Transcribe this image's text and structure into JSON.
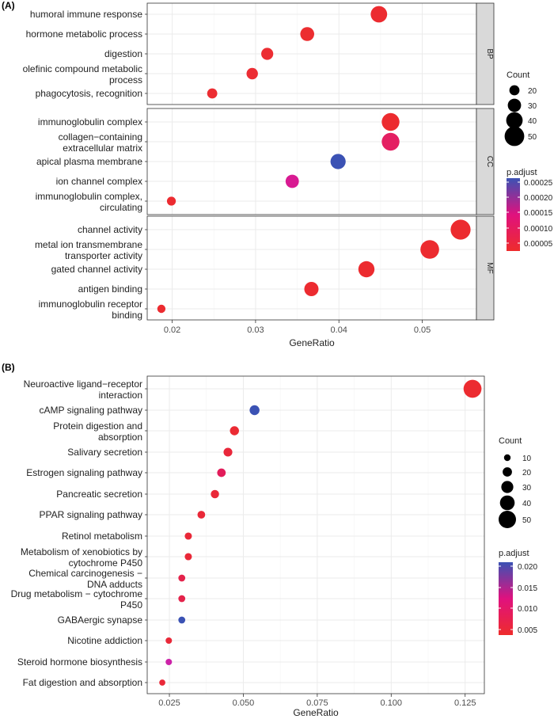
{
  "figure": {
    "panel_a_tag": "(A)",
    "panel_b_tag": "(B)"
  },
  "chart_data": [
    {
      "type": "scatter",
      "panel": "(A)",
      "xlabel": "GeneRatio",
      "xlim": [
        0.017,
        0.0565
      ],
      "xticks": [
        0.02,
        0.03,
        0.04,
        0.05
      ],
      "xtick_labels": [
        "0.02",
        "0.03",
        "0.04",
        "0.05"
      ],
      "grid": true,
      "facets": [
        {
          "label": "BP",
          "terms": [
            {
              "lines": [
                "humoral immune response"
              ],
              "x": 0.0448,
              "count": 40,
              "p_adjust": 2e-06,
              "color": "#ec2b30"
            },
            {
              "lines": [
                "hormone metabolic process"
              ],
              "x": 0.0362,
              "count": 32,
              "p_adjust": 3e-06,
              "color": "#ec2d30"
            },
            {
              "lines": [
                "digestion"
              ],
              "x": 0.0314,
              "count": 26,
              "p_adjust": 3e-06,
              "color": "#ec2d32"
            },
            {
              "lines": [
                "olefinic compound metabolic",
                "process"
              ],
              "x": 0.0296,
              "count": 24,
              "p_adjust": 4e-06,
              "color": "#ec2d34"
            },
            {
              "lines": [
                "phagocytosis, recognition"
              ],
              "x": 0.0248,
              "count": 20,
              "p_adjust": 3e-06,
              "color": "#ec2d32"
            }
          ]
        },
        {
          "label": "CC",
          "terms": [
            {
              "lines": [
                "immunoglobulin complex"
              ],
              "x": 0.0462,
              "count": 44,
              "p_adjust": 2e-06,
              "color": "#ec2b2f"
            },
            {
              "lines": [
                "collagen−containing",
                "extracellular matrix"
              ],
              "x": 0.0462,
              "count": 44,
              "p_adjust": 5e-05,
              "color": "#e41f62"
            },
            {
              "lines": [
                "apical plasma membrane"
              ],
              "x": 0.0399,
              "count": 36,
              "p_adjust": 0.00026,
              "color": "#3b52b4"
            },
            {
              "lines": [
                "ion channel complex"
              ],
              "x": 0.0344,
              "count": 30,
              "p_adjust": 0.00011,
              "color": "#d81a92"
            },
            {
              "lines": [
                "immunoglobulin complex,",
                "circulating"
              ],
              "x": 0.0199,
              "count": 16,
              "p_adjust": 2e-06,
              "color": "#ec2b30"
            }
          ]
        },
        {
          "label": "MF",
          "terms": [
            {
              "lines": [
                "channel activity"
              ],
              "x": 0.0546,
              "count": 51,
              "p_adjust": 2e-06,
              "color": "#ec2b2f"
            },
            {
              "lines": [
                "metal ion transmembrane",
                "transporter activity"
              ],
              "x": 0.0509,
              "count": 47,
              "p_adjust": 2e-06,
              "color": "#ec2b2f"
            },
            {
              "lines": [
                "gated channel activity"
              ],
              "x": 0.0433,
              "count": 39,
              "p_adjust": 2e-06,
              "color": "#ec2b2f"
            },
            {
              "lines": [
                "antigen binding"
              ],
              "x": 0.0367,
              "count": 33,
              "p_adjust": 2e-06,
              "color": "#ec2b30"
            },
            {
              "lines": [
                "immunoglobulin receptor",
                "binding"
              ],
              "x": 0.0187,
              "count": 14,
              "p_adjust": 2e-06,
              "color": "#ec2b30"
            }
          ]
        }
      ],
      "legend_size": {
        "title": "Count",
        "values": [
          20,
          30,
          40,
          50
        ],
        "labels": [
          "20",
          "30",
          "40",
          "50"
        ]
      },
      "legend_color": {
        "title": "p.adjust",
        "ticks": [
          "0.00025",
          "0.00020",
          "0.00015",
          "0.00010",
          "0.00005"
        ],
        "low_color": "#ee2c2c",
        "mid_color": "#e0117e",
        "high_color": "#3b52b4"
      }
    },
    {
      "type": "scatter",
      "panel": "(B)",
      "xlabel": "GeneRatio",
      "xlim": [
        0.0175,
        0.1315
      ],
      "xticks": [
        0.025,
        0.05,
        0.075,
        0.1,
        0.125
      ],
      "xtick_labels": [
        "0.025",
        "0.050",
        "0.075",
        "0.100",
        "0.125"
      ],
      "grid": true,
      "terms": [
        {
          "lines": [
            "Neuroactive ligand−receptor",
            "interaction"
          ],
          "x": 0.1275,
          "count": 52,
          "p_adjust": 0.0004,
          "color": "#ec2b30"
        },
        {
          "lines": [
            "cAMP signaling pathway"
          ],
          "x": 0.0538,
          "count": 22,
          "p_adjust": 0.021,
          "color": "#3b52b4"
        },
        {
          "lines": [
            "Protein digestion and",
            "absorption"
          ],
          "x": 0.047,
          "count": 19,
          "p_adjust": 0.001,
          "color": "#eb2a33"
        },
        {
          "lines": [
            "Salivary secretion"
          ],
          "x": 0.0448,
          "count": 18,
          "p_adjust": 0.002,
          "color": "#e9273a"
        },
        {
          "lines": [
            "Estrogen signaling pathway"
          ],
          "x": 0.0426,
          "count": 17,
          "p_adjust": 0.006,
          "color": "#e21c5a"
        },
        {
          "lines": [
            "Pancreatic secretion"
          ],
          "x": 0.0404,
          "count": 16,
          "p_adjust": 0.002,
          "color": "#e92838"
        },
        {
          "lines": [
            "PPAR signaling pathway"
          ],
          "x": 0.0358,
          "count": 14,
          "p_adjust": 0.002,
          "color": "#e92838"
        },
        {
          "lines": [
            "Retinol metabolism"
          ],
          "x": 0.0314,
          "count": 12,
          "p_adjust": 0.002,
          "color": "#e92838"
        },
        {
          "lines": [
            "Metabolism of xenobiotics by",
            "cytochrome P450"
          ],
          "x": 0.0314,
          "count": 12,
          "p_adjust": 0.002,
          "color": "#e92838"
        },
        {
          "lines": [
            "Chemical carcinogenesis −",
            "DNA adducts"
          ],
          "x": 0.0292,
          "count": 11,
          "p_adjust": 0.004,
          "color": "#e4234b"
        },
        {
          "lines": [
            "Drug metabolism − cytochrome",
            "P450"
          ],
          "x": 0.0292,
          "count": 11,
          "p_adjust": 0.004,
          "color": "#e4234b"
        },
        {
          "lines": [
            "GABAergic synapse"
          ],
          "x": 0.0292,
          "count": 11,
          "p_adjust": 0.0205,
          "color": "#3b52b4"
        },
        {
          "lines": [
            "Nicotine addiction"
          ],
          "x": 0.0248,
          "count": 9,
          "p_adjust": 0.002,
          "color": "#e92838"
        },
        {
          "lines": [
            "Steroid hormone biosynthesis"
          ],
          "x": 0.0248,
          "count": 9,
          "p_adjust": 0.011,
          "color": "#cc22a8"
        },
        {
          "lines": [
            "Fat digestion and absorption"
          ],
          "x": 0.0226,
          "count": 8,
          "p_adjust": 0.002,
          "color": "#e92838"
        }
      ],
      "legend_size": {
        "title": "Count",
        "values": [
          10,
          20,
          30,
          40,
          50
        ],
        "labels": [
          "10",
          "20",
          "30",
          "40",
          "50"
        ]
      },
      "legend_color": {
        "title": "p.adjust",
        "ticks": [
          "0.020",
          "0.015",
          "0.010",
          "0.005"
        ],
        "low_color": "#ee2c2c",
        "mid_color": "#e0117e",
        "high_color": "#3b52b4"
      }
    }
  ]
}
